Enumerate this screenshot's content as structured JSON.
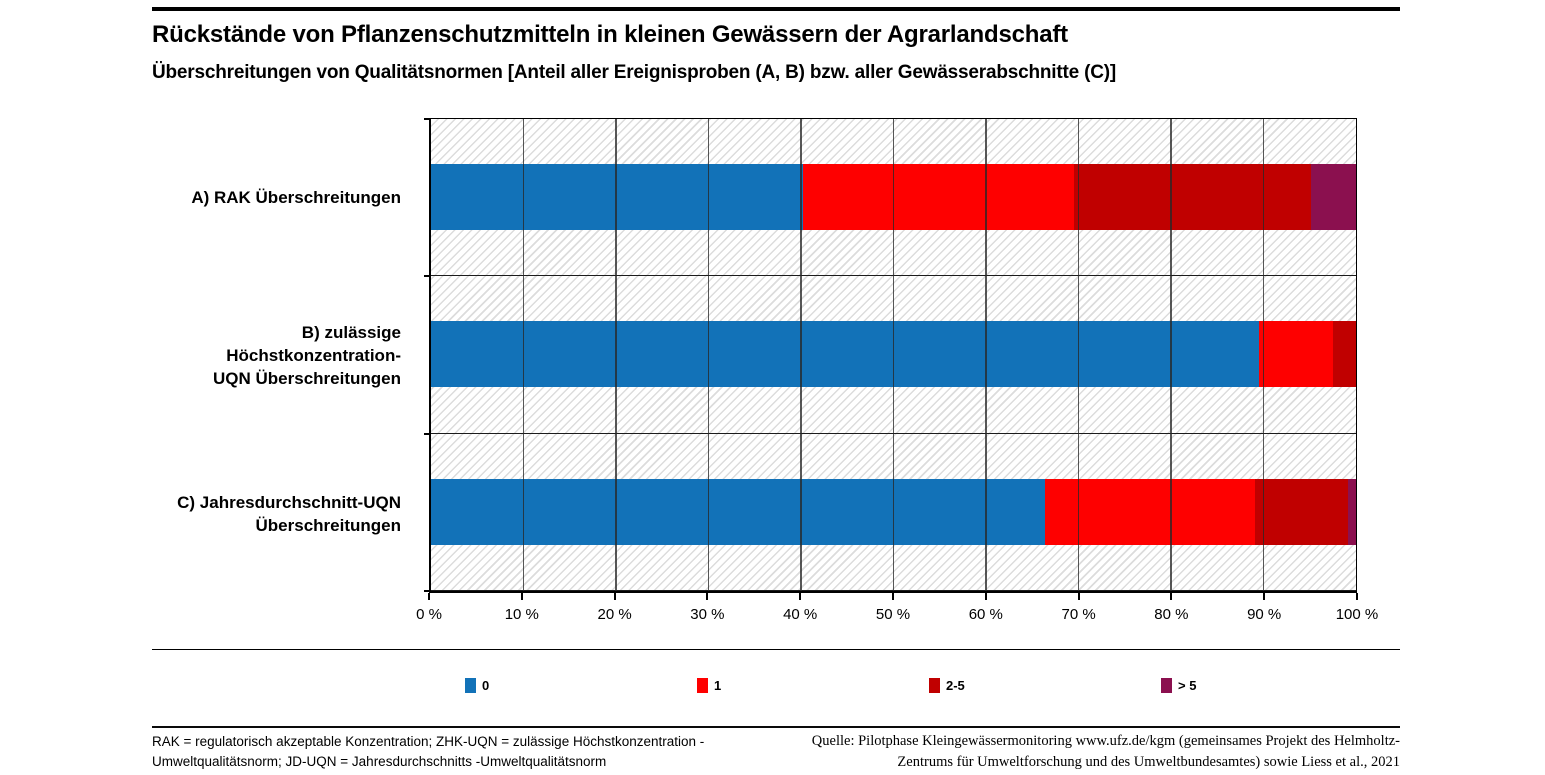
{
  "header": {
    "title": "Rückstände von Pflanzenschutzmitteln in kleinen Gewässern der Agrarlandschaft",
    "subtitle": "Überschreitungen von Qualitätsnormen [Anteil aller Ereignisproben (A, B) bzw. aller Gewässerabschnitte (C)]"
  },
  "footer": {
    "note_lines": [
      "RAK = regulatorisch akzeptable Konzentration; ZHK-UQN = zulässige Höchstkonzentration -",
      "Umweltqualitätsnorm; JD-UQN = Jahresdurchschnitts -Umweltqualitätsnorm"
    ],
    "source_lines": [
      "Quelle: Pilotphase Kleingewässermonitoring www.ufz.de/kgm (gemeinsames Projekt des Helmholtz-",
      "Zentrums für Umweltforschung und des Umweltbundesamtes) sowie Liess et al., 2021"
    ]
  },
  "chart_data": {
    "type": "bar",
    "orientation": "horizontal",
    "stacked": true,
    "title": "Rückstände von Pflanzenschutzmitteln in kleinen Gewässern der Agrarlandschaft",
    "subtitle": "Überschreitungen von Qualitätsnormen [Anteil aller Ereignisproben (A, B) bzw. aller Gewässerabschnitte (C)]",
    "categories": [
      "A) RAK Überschreitungen",
      "B) zulässige Höchstkonzentration-UQN Überschreitungen",
      "C) Jahresdurchschnitt-UQN Überschreitungen"
    ],
    "category_label_lines": [
      [
        "A) RAK Überschreitungen"
      ],
      [
        "B) zulässige Höchstkonzentration-",
        "UQN Überschreitungen"
      ],
      [
        "C) Jahresdurchschnitt-UQN",
        "Überschreitungen"
      ]
    ],
    "series": [
      {
        "name": "0",
        "color": "#1272B8",
        "values": [
          40.2,
          89.5,
          66.4
        ]
      },
      {
        "name": "1",
        "color": "#FE0000",
        "values": [
          29.3,
          8.0,
          22.7
        ]
      },
      {
        "name": "2-5",
        "color": "#C00000",
        "values": [
          25.6,
          2.5,
          10.0
        ]
      },
      {
        "name": "> 5",
        "color": "#8B104F",
        "values": [
          4.9,
          0.0,
          0.9
        ]
      }
    ],
    "x_ticks": [
      "0 %",
      "10 %",
      "20 %",
      "30 %",
      "40 %",
      "50 %",
      "60 %",
      "70 %",
      "80 %",
      "90 %",
      "100 %"
    ],
    "xlim": [
      0,
      100
    ],
    "xlabel": "",
    "ylabel": "",
    "grid": true,
    "grid_interval_percent": 10,
    "plot_background": "diagonal-hatch",
    "legend_position": "bottom",
    "legend_labels": [
      "0",
      "1",
      "2-5",
      "> 5"
    ]
  }
}
